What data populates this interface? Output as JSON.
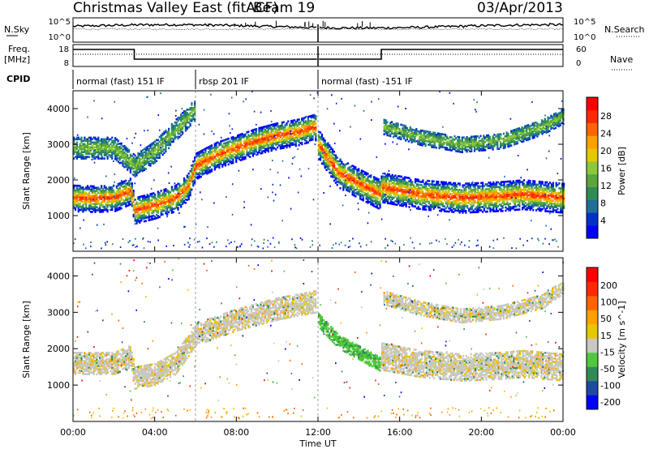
{
  "header": {
    "title": "Christmas Valley East (fitACF)",
    "beam": "Beam 19",
    "date": "03/Apr/2013"
  },
  "strip_labels": {
    "nsky": "N.Sky",
    "nsky_ticks": [
      "10^5",
      "10^0"
    ],
    "nsearch": "N.Search",
    "nsearch_ticks": [
      "10^5",
      "10^0"
    ],
    "freq": "Freq.",
    "freq_unit": "[MHz]",
    "freq_ticks": [
      "18",
      "8"
    ],
    "nave": "Nave",
    "nave_ticks": [
      "60",
      "0"
    ],
    "cpid": "CPID"
  },
  "cpid_segments": [
    {
      "label": "normal (fast) 151 IF",
      "start_h": 0,
      "end_h": 6
    },
    {
      "label": "rbsp 201 IF",
      "start_h": 6,
      "end_h": 12
    },
    {
      "label": "normal (fast) -151 IF",
      "start_h": 12,
      "end_h": 24
    }
  ],
  "axes": {
    "ylabel": "Slant Range [km]",
    "xlabel": "Time UT",
    "x_ticks": [
      "00:00",
      "04:00",
      "08:00",
      "12:00",
      "16:00",
      "20:00",
      "00:00"
    ],
    "y_ticks": [
      "1000",
      "2000",
      "3000",
      "4000"
    ]
  },
  "colorbars": {
    "power": {
      "label": "Power [dB]",
      "ticks": [
        "28",
        "24",
        "20",
        "16",
        "12",
        "8",
        "4"
      ],
      "colors": [
        "#0000ff",
        "#0032c8",
        "#1e6e9a",
        "#2e8b57",
        "#5aa53c",
        "#8cc83c",
        "#e6c800",
        "#ffa000",
        "#ff6400",
        "#ff2800",
        "#ff0000"
      ]
    },
    "velocity": {
      "label": "Velocity [m s^-1]",
      "ticks": [
        "200",
        "100",
        "50",
        "15",
        "-15",
        "-50",
        "-100",
        "-200"
      ],
      "colors": [
        "#0000ff",
        "#1e4aa0",
        "#2e8b57",
        "#50c83c",
        "#c8c8c0",
        "#e6c800",
        "#ffa000",
        "#ff6400",
        "#ff2800",
        "#ff0000"
      ]
    }
  },
  "chart_data": [
    {
      "type": "heatmap",
      "name": "Power",
      "x_unit": "hours UT",
      "xlim": [
        0,
        24
      ],
      "ylim": [
        0,
        4500
      ],
      "layers": [
        {
          "kind": "power_main",
          "points": [
            [
              0,
              1500
            ],
            [
              1,
              1480
            ],
            [
              2,
              1500
            ],
            [
              2.8,
              1700
            ],
            [
              3,
              1150
            ],
            [
              4,
              1300
            ],
            [
              5,
              1500
            ],
            [
              5.6,
              1800
            ],
            [
              6,
              2400
            ],
            [
              7,
              2700
            ],
            [
              8,
              2900
            ],
            [
              9,
              3100
            ],
            [
              10,
              3250
            ],
            [
              11,
              3350
            ],
            [
              11.9,
              3500
            ]
          ],
          "width": 380
        },
        {
          "kind": "power_main",
          "points": [
            [
              12,
              3000
            ],
            [
              13,
              2200
            ],
            [
              14,
              1900
            ],
            [
              15,
              1600
            ],
            [
              15.1,
              1800
            ],
            [
              17,
              1600
            ],
            [
              19,
              1500
            ],
            [
              21,
              1550
            ],
            [
              22,
              1600
            ],
            [
              24,
              1500
            ]
          ],
          "width": 420
        },
        {
          "kind": "power_echo",
          "points": [
            [
              0,
              2900
            ],
            [
              2,
              2900
            ],
            [
              3,
              2400
            ],
            [
              4,
              2800
            ],
            [
              5,
              3400
            ],
            [
              6,
              4000
            ]
          ],
          "width": 300
        },
        {
          "kind": "power_echo",
          "points": [
            [
              15.2,
              3500
            ],
            [
              17,
              3200
            ],
            [
              19,
              3000
            ],
            [
              21,
              3100
            ],
            [
              23,
              3500
            ],
            [
              24,
              3800
            ]
          ],
          "width": 220
        }
      ]
    },
    {
      "type": "heatmap",
      "name": "Velocity",
      "x_unit": "hours UT",
      "xlim": [
        0,
        24
      ],
      "ylim": [
        0,
        4500
      ],
      "layers": [
        {
          "kind": "vel_gray",
          "points": [
            [
              0,
              1600
            ],
            [
              2,
              1600
            ],
            [
              2.8,
              1800
            ],
            [
              3,
              1200
            ],
            [
              4,
              1300
            ],
            [
              5,
              1600
            ],
            [
              6,
              2400
            ],
            [
              8,
              2800
            ],
            [
              10,
              3100
            ],
            [
              11.9,
              3300
            ]
          ],
          "width": 300
        },
        {
          "kind": "vel_green",
          "points": [
            [
              12,
              2800
            ],
            [
              13,
              2200
            ],
            [
              14,
              1900
            ],
            [
              15,
              1600
            ]
          ],
          "width": 200
        },
        {
          "kind": "vel_gray",
          "points": [
            [
              15.1,
              1800
            ],
            [
              17,
              1600
            ],
            [
              19,
              1500
            ],
            [
              21,
              1550
            ],
            [
              22,
              1600
            ],
            [
              24,
              1500
            ]
          ],
          "width": 380
        },
        {
          "kind": "vel_gray",
          "points": [
            [
              15.2,
              3400
            ],
            [
              17,
              3100
            ],
            [
              19,
              2900
            ],
            [
              21,
              3000
            ],
            [
              23,
              3300
            ],
            [
              24,
              3700
            ]
          ],
          "width": 180
        }
      ]
    }
  ]
}
